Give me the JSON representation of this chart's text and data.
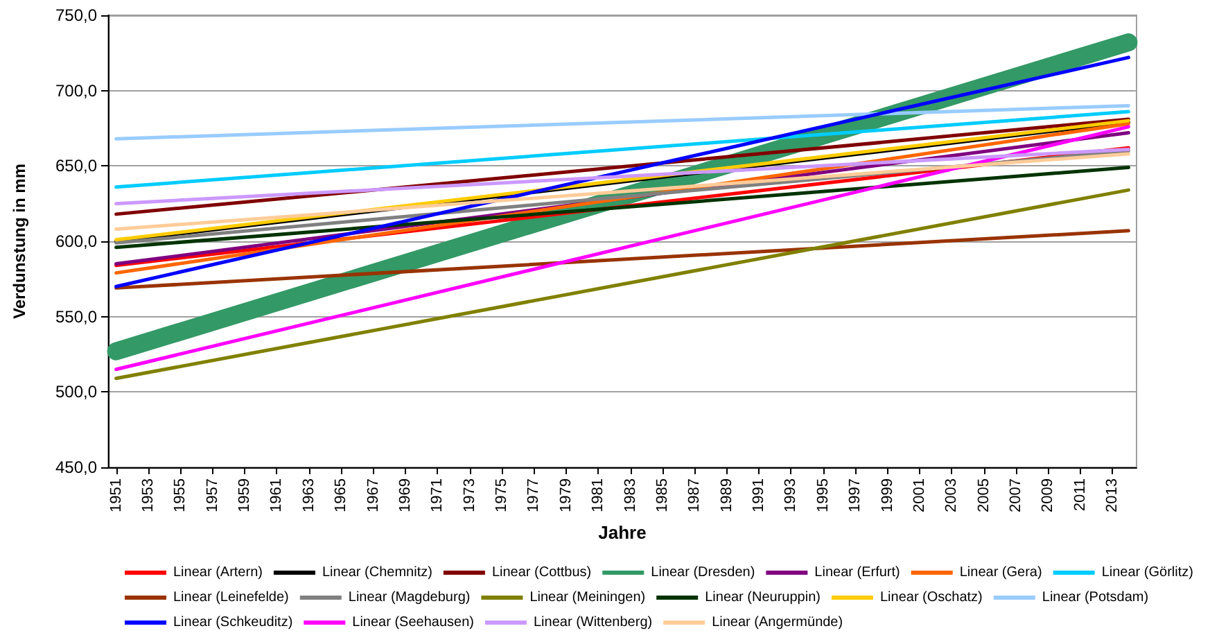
{
  "chart_data": {
    "type": "line",
    "xlabel": "Jahre",
    "ylabel": "Verdunstung in mm",
    "x": [
      1951,
      2014
    ],
    "xlim": [
      1950.5,
      2014.5
    ],
    "xticks": [
      1951,
      1953,
      1955,
      1957,
      1959,
      1961,
      1963,
      1965,
      1967,
      1969,
      1971,
      1973,
      1975,
      1977,
      1979,
      1981,
      1983,
      1985,
      1987,
      1989,
      1991,
      1993,
      1995,
      1997,
      1999,
      2001,
      2003,
      2005,
      2007,
      2009,
      2011,
      2013
    ],
    "ylim": [
      450,
      750
    ],
    "yticks": [
      {
        "value": 450,
        "label": "450,0"
      },
      {
        "value": 500,
        "label": "500,0"
      },
      {
        "value": 550,
        "label": "550,0"
      },
      {
        "value": 600,
        "label": "600,0"
      },
      {
        "value": 650,
        "label": "650,0"
      },
      {
        "value": 700,
        "label": "700,0"
      },
      {
        "value": 750,
        "label": "750,0"
      }
    ],
    "grid": "y",
    "legend": "bottom",
    "marker": "none",
    "line_style": "solid",
    "series": [
      {
        "name": "Linear (Artern)",
        "color": "#ff0000",
        "values": [
          584,
          662
        ]
      },
      {
        "name": "Linear (Chemnitz)",
        "color": "#000000",
        "values": [
          600,
          679
        ]
      },
      {
        "name": "Linear (Cottbus)",
        "color": "#800000",
        "values": [
          618,
          681
        ]
      },
      {
        "name": "Linear (Dresden)",
        "color": "#339966",
        "values": [
          527,
          732
        ]
      },
      {
        "name": "Linear (Erfurt)",
        "color": "#800080",
        "values": [
          585,
          672
        ]
      },
      {
        "name": "Linear (Gera)",
        "color": "#ff6600",
        "values": [
          579,
          678
        ]
      },
      {
        "name": "Linear (Görlitz)",
        "color": "#00ccff",
        "values": [
          636,
          686
        ]
      },
      {
        "name": "Linear (Leinefelde)",
        "color": "#993300",
        "values": [
          569,
          607
        ]
      },
      {
        "name": "Linear (Magdeburg)",
        "color": "#808080",
        "values": [
          599,
          660
        ]
      },
      {
        "name": "Linear (Meiningen)",
        "color": "#808000",
        "values": [
          509,
          634
        ]
      },
      {
        "name": "Linear (Neuruppin)",
        "color": "#003300",
        "values": [
          596,
          649
        ]
      },
      {
        "name": "Linear (Oschatz)",
        "color": "#ffcc00",
        "values": [
          601,
          680
        ]
      },
      {
        "name": "Linear (Potsdam)",
        "color": "#99ccff",
        "values": [
          668,
          690
        ]
      },
      {
        "name": "Linear (Schkeuditz)",
        "color": "#0000ff",
        "values": [
          570,
          722
        ]
      },
      {
        "name": "Linear (Seehausen)",
        "color": "#ff00ff",
        "values": [
          515,
          676
        ]
      },
      {
        "name": "Linear (Wittenberg)",
        "color": "#cc99ff",
        "values": [
          625,
          661
        ]
      },
      {
        "name": "Linear (Angermünde)",
        "color": "#ffcc99",
        "values": [
          608,
          658
        ]
      }
    ]
  }
}
